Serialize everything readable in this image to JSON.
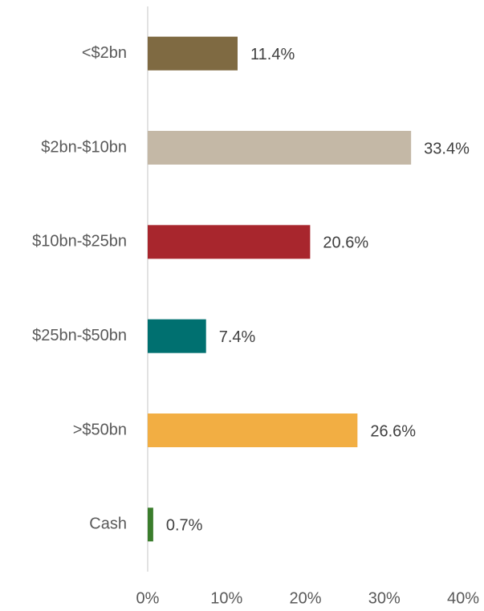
{
  "chart_data": {
    "type": "bar",
    "orientation": "horizontal",
    "categories": [
      "<$2bn",
      "$2bn-$10bn",
      "$10bn-$25bn",
      "$25bn-$50bn",
      ">$50bn",
      "Cash"
    ],
    "values": [
      11.4,
      33.4,
      20.6,
      7.4,
      26.6,
      0.7
    ],
    "value_labels": [
      "11.4%",
      "33.4%",
      "20.6%",
      "7.4%",
      "26.6%",
      "0.7%"
    ],
    "colors": [
      "#7f6a42",
      "#c4b8a6",
      "#a8262d",
      "#007070",
      "#f2ae43",
      "#3a7d2c"
    ],
    "xlim": [
      0,
      40
    ],
    "xticks": [
      {
        "value": 0,
        "label": "0%"
      },
      {
        "value": 10,
        "label": "10%"
      },
      {
        "value": 20,
        "label": "20%"
      },
      {
        "value": 30,
        "label": "30%"
      },
      {
        "value": 40,
        "label": "40%"
      }
    ],
    "grid": false
  }
}
